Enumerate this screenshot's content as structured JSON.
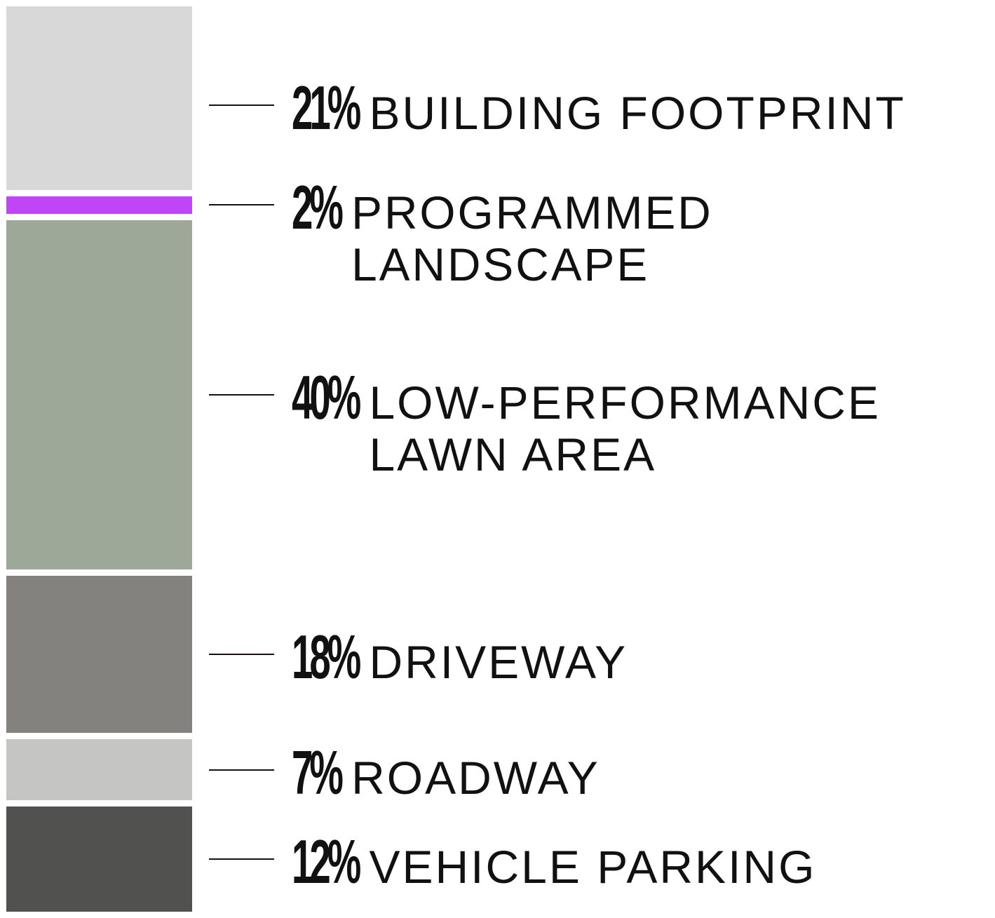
{
  "chart_data": {
    "type": "bar",
    "stacked": true,
    "orientation": "vertical",
    "unit": "%",
    "segments": [
      {
        "percent_label": "21%",
        "category": "BUILDING FOOTPRINT",
        "value": 21,
        "color": "#d8d8d8"
      },
      {
        "percent_label": "2%",
        "category": "PROGRAMMED LANDSCAPE",
        "value": 2,
        "color": "#bf45f7"
      },
      {
        "percent_label": "40%",
        "category": "LOW-PERFORMANCE\nLAWN AREA",
        "value": 40,
        "color": "#9da898"
      },
      {
        "percent_label": "18%",
        "category": "DRIVEWAY",
        "value": 18,
        "color": "#83827e"
      },
      {
        "percent_label": "7%",
        "category": "ROADWAY",
        "value": 7,
        "color": "#c5c5c4"
      },
      {
        "percent_label": "12%",
        "category": "VEHICLE PARKING",
        "value": 12,
        "color": "#51514f"
      }
    ]
  }
}
